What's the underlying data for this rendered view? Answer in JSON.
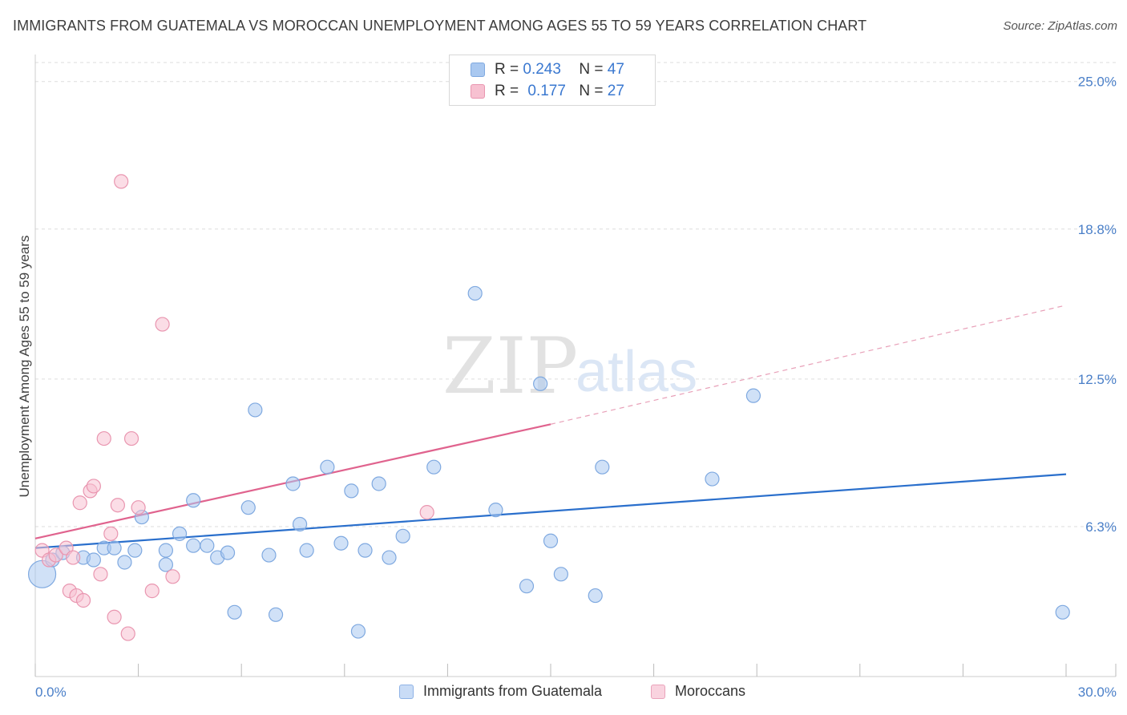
{
  "title": "IMMIGRANTS FROM GUATEMALA VS MOROCCAN UNEMPLOYMENT AMONG AGES 55 TO 59 YEARS CORRELATION CHART",
  "source": "Source: ZipAtlas.com",
  "watermark": {
    "zip": "ZIP",
    "atlas": "atlas"
  },
  "legend": {
    "rows": [
      {
        "r_label": "R =",
        "r_value": "0.243",
        "n_label": "N =",
        "n_value": "47",
        "color": "#a9c8f0",
        "border": "#7fa9e0"
      },
      {
        "r_label": "R =",
        "r_value": "0.177",
        "n_label": "N =",
        "n_value": "27",
        "color": "#f7c1d1",
        "border": "#e996b0"
      }
    ]
  },
  "bottom_legend": {
    "items": [
      {
        "label": "Immigrants from Guatemala",
        "color": "#c9dcf6",
        "border": "#8fb3e6"
      },
      {
        "label": "Moroccans",
        "color": "#f9d3df",
        "border": "#eaa3bb"
      }
    ]
  },
  "chart_data": {
    "type": "scatter",
    "title": "IMMIGRANTS FROM GUATEMALA VS MOROCCAN UNEMPLOYMENT AMONG AGES 55 TO 59 YEARS CORRELATION CHART",
    "xlabel": "",
    "ylabel": "Unemployment Among Ages 55 to 59 years",
    "xlim": [
      0,
      30
    ],
    "ylim": [
      0,
      26
    ],
    "x_tick_labels": [
      "0.0%",
      "30.0%"
    ],
    "y_ticks": [
      6.3,
      12.5,
      18.8,
      25.0
    ],
    "y_tick_labels": [
      "6.3%",
      "12.5%",
      "18.8%",
      "25.0%"
    ],
    "grid": true,
    "series": [
      {
        "name": "Immigrants from Guatemala",
        "color": "#a9c8f0",
        "stroke": "#7fa9e0",
        "trend": {
          "x0": 0,
          "y0": 5.4,
          "x1": 30,
          "y1": 8.5,
          "color": "#2a6fcc"
        },
        "points": [
          {
            "x": 0.2,
            "y": 4.3,
            "big": true
          },
          {
            "x": 0.5,
            "y": 4.9
          },
          {
            "x": 0.8,
            "y": 5.2
          },
          {
            "x": 1.4,
            "y": 5.0
          },
          {
            "x": 1.7,
            "y": 4.9
          },
          {
            "x": 2.0,
            "y": 5.4
          },
          {
            "x": 2.3,
            "y": 5.4
          },
          {
            "x": 2.6,
            "y": 4.8
          },
          {
            "x": 2.9,
            "y": 5.3
          },
          {
            "x": 3.1,
            "y": 6.7
          },
          {
            "x": 3.8,
            "y": 5.3
          },
          {
            "x": 3.8,
            "y": 4.7
          },
          {
            "x": 4.2,
            "y": 6.0
          },
          {
            "x": 4.6,
            "y": 7.4
          },
          {
            "x": 4.6,
            "y": 5.5
          },
          {
            "x": 5.0,
            "y": 5.5
          },
          {
            "x": 5.3,
            "y": 5.0
          },
          {
            "x": 5.6,
            "y": 5.2
          },
          {
            "x": 5.8,
            "y": 2.7
          },
          {
            "x": 6.2,
            "y": 7.1
          },
          {
            "x": 6.4,
            "y": 11.2
          },
          {
            "x": 6.8,
            "y": 5.1
          },
          {
            "x": 7.0,
            "y": 2.6
          },
          {
            "x": 7.5,
            "y": 8.1
          },
          {
            "x": 7.7,
            "y": 6.4
          },
          {
            "x": 7.9,
            "y": 5.3
          },
          {
            "x": 8.5,
            "y": 8.8
          },
          {
            "x": 8.9,
            "y": 5.6
          },
          {
            "x": 9.2,
            "y": 7.8
          },
          {
            "x": 9.4,
            "y": 1.9
          },
          {
            "x": 9.6,
            "y": 5.3
          },
          {
            "x": 10.0,
            "y": 8.1
          },
          {
            "x": 10.3,
            "y": 5.0
          },
          {
            "x": 10.7,
            "y": 5.9
          },
          {
            "x": 11.6,
            "y": 8.8
          },
          {
            "x": 12.8,
            "y": 16.1
          },
          {
            "x": 13.4,
            "y": 7.0
          },
          {
            "x": 14.3,
            "y": 3.8
          },
          {
            "x": 14.7,
            "y": 12.3
          },
          {
            "x": 15.0,
            "y": 5.7
          },
          {
            "x": 15.3,
            "y": 4.3
          },
          {
            "x": 16.3,
            "y": 3.4
          },
          {
            "x": 16.5,
            "y": 8.8
          },
          {
            "x": 19.7,
            "y": 8.3
          },
          {
            "x": 20.9,
            "y": 11.8
          },
          {
            "x": 29.9,
            "y": 2.7
          }
        ]
      },
      {
        "name": "Moroccans",
        "color": "#f7c1d1",
        "stroke": "#e996b0",
        "trend": {
          "x0": 0,
          "y0": 5.8,
          "x1": 15.0,
          "y1": 10.6,
          "color": "#e0638e"
        },
        "trend_dashed": {
          "x0": 15.0,
          "y0": 10.6,
          "x1": 30.0,
          "y1": 15.6,
          "color": "#e8a0b8"
        },
        "points": [
          {
            "x": 0.2,
            "y": 5.3
          },
          {
            "x": 0.4,
            "y": 4.9
          },
          {
            "x": 0.6,
            "y": 5.1
          },
          {
            "x": 0.9,
            "y": 5.4
          },
          {
            "x": 1.1,
            "y": 5.0
          },
          {
            "x": 1.0,
            "y": 3.6
          },
          {
            "x": 1.2,
            "y": 3.4
          },
          {
            "x": 1.4,
            "y": 3.2
          },
          {
            "x": 1.3,
            "y": 7.3
          },
          {
            "x": 1.6,
            "y": 7.8
          },
          {
            "x": 1.7,
            "y": 8.0
          },
          {
            "x": 1.9,
            "y": 4.3
          },
          {
            "x": 2.0,
            "y": 10.0
          },
          {
            "x": 2.2,
            "y": 6.0
          },
          {
            "x": 2.3,
            "y": 2.5
          },
          {
            "x": 2.4,
            "y": 7.2
          },
          {
            "x": 2.5,
            "y": 20.8
          },
          {
            "x": 2.7,
            "y": 1.8
          },
          {
            "x": 2.8,
            "y": 10.0
          },
          {
            "x": 3.0,
            "y": 7.1
          },
          {
            "x": 3.4,
            "y": 3.6
          },
          {
            "x": 3.7,
            "y": 14.8
          },
          {
            "x": 4.0,
            "y": 4.2
          },
          {
            "x": 11.4,
            "y": 6.9
          }
        ]
      }
    ]
  }
}
